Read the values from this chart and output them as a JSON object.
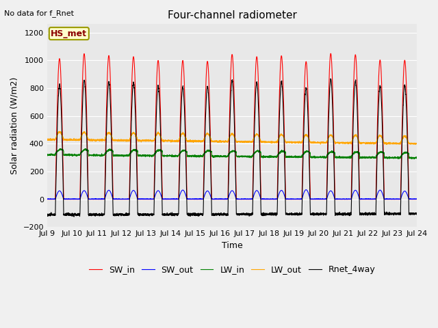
{
  "title": "Four-channel radiometer",
  "subtitle": "No data for f_Rnet",
  "xlabel": "Time",
  "ylabel": "Solar radiation (W/m2)",
  "xlim": [
    9,
    24
  ],
  "ylim": [
    -200,
    1260
  ],
  "xticks": [
    9,
    10,
    11,
    12,
    13,
    14,
    15,
    16,
    17,
    18,
    19,
    20,
    21,
    22,
    23,
    24
  ],
  "xtick_labels": [
    "Jul 9",
    "Jul 10",
    "Jul 11",
    "Jul 12",
    "Jul 13",
    "Jul 14",
    "Jul 15",
    "Jul 16",
    "Jul 17",
    "Jul 18",
    "Jul 19",
    "Jul 20",
    "Jul 21",
    "Jul 22",
    "Jul 23",
    "Jul 24"
  ],
  "yticks": [
    -200,
    0,
    200,
    400,
    600,
    800,
    1000,
    1200
  ],
  "legend_entries": [
    "SW_in",
    "SW_out",
    "LW_in",
    "LW_out",
    "Rnet_4way"
  ],
  "line_colors": [
    "red",
    "blue",
    "green",
    "orange",
    "black"
  ],
  "bg_color": "#f0f0f0",
  "plot_bg_color": "#e8e8e8",
  "grid_color": "white",
  "annotation_text": "HS_met",
  "SW_in_peak": 1020,
  "SW_out_peak": 65,
  "LW_in_base": 320,
  "LW_in_amp": 40,
  "LW_out_base": 430,
  "LW_out_amp": 55,
  "Rnet_night": -120
}
